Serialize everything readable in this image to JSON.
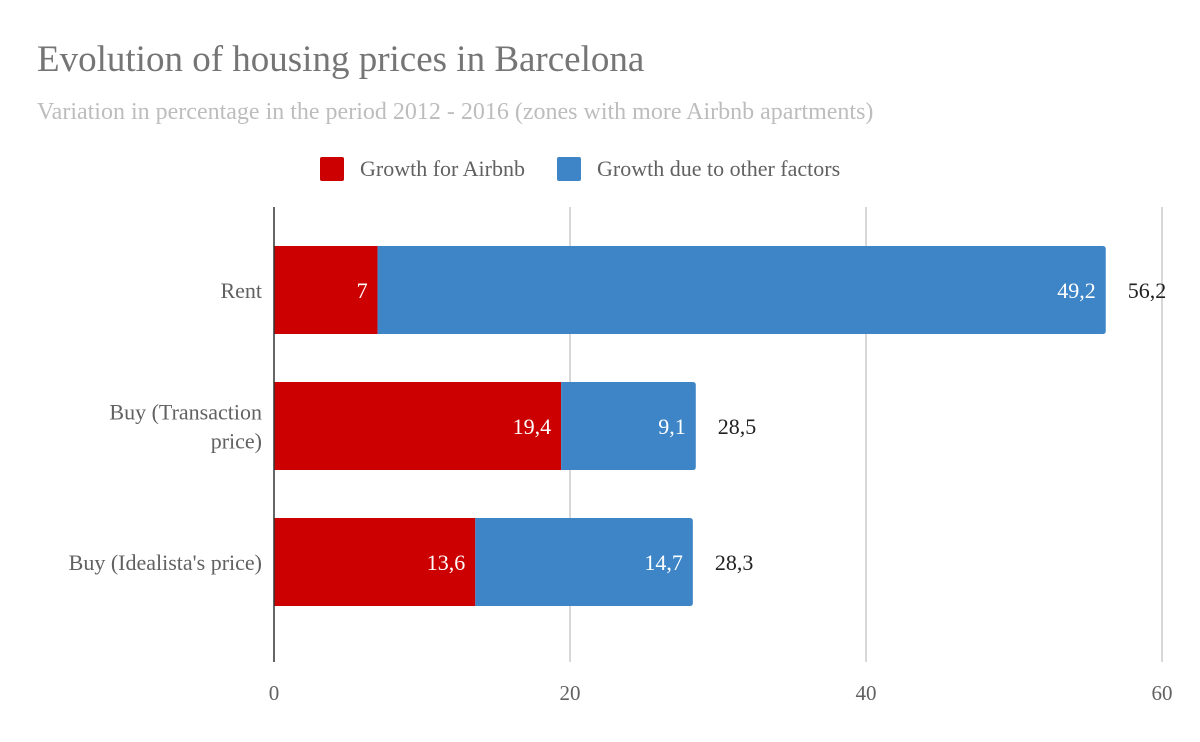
{
  "chart_data": {
    "type": "bar",
    "orientation": "horizontal",
    "stacked": true,
    "title": "Evolution of housing prices in Barcelona",
    "subtitle": "Variation in percentage in the period 2012 - 2016 (zones with more Airbnb apartments)",
    "categories": [
      [
        "Rent"
      ],
      [
        "Buy (Transaction",
        "price)"
      ],
      [
        "Buy (Idealista's price)"
      ]
    ],
    "series": [
      {
        "name": "Growth for Airbnb",
        "color": "#cc0000",
        "values": [
          7,
          19.4,
          13.6
        ],
        "labels": [
          "7",
          "19,4",
          "13,6"
        ]
      },
      {
        "name": "Growth due to other factors",
        "color": "#3d85c6",
        "values": [
          49.2,
          9.1,
          14.7
        ],
        "labels": [
          "49,2",
          "9,1",
          "14,7"
        ]
      }
    ],
    "totals": {
      "values": [
        56.2,
        28.5,
        28.3
      ],
      "labels": [
        "56,2",
        "28,5",
        "28,3"
      ]
    },
    "xlim": [
      0,
      60
    ],
    "x_ticks": [
      0,
      20,
      40,
      60
    ],
    "x_tick_labels": [
      "0",
      "20",
      "40",
      "60"
    ],
    "grid": true,
    "legend_position": "top"
  }
}
